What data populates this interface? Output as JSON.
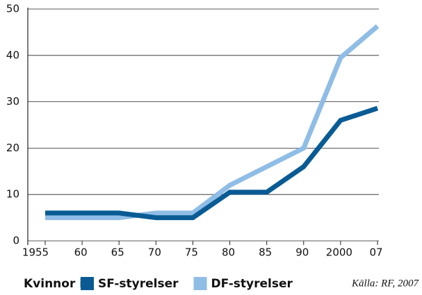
{
  "chart_data": {
    "type": "line",
    "categories": [
      "1955",
      "60",
      "65",
      "70",
      "75",
      "80",
      "85",
      "90",
      "2000",
      "07"
    ],
    "series": [
      {
        "name": "SF-styrelser",
        "color": "#0a5b94",
        "values": [
          6,
          6,
          6,
          5,
          5,
          10.5,
          10.5,
          16,
          26,
          28.6
        ]
      },
      {
        "name": "DF-styrelser",
        "color": "#8fbde6",
        "values": [
          5,
          5,
          5,
          6,
          6,
          12,
          16,
          20,
          39.5,
          46.3
        ]
      }
    ],
    "ylim": [
      0,
      50
    ],
    "yticks": [
      0,
      10,
      20,
      30,
      40,
      50
    ],
    "grid": true,
    "legend_title": "Kvinnor i",
    "source": "Källa: RF, 2007"
  }
}
